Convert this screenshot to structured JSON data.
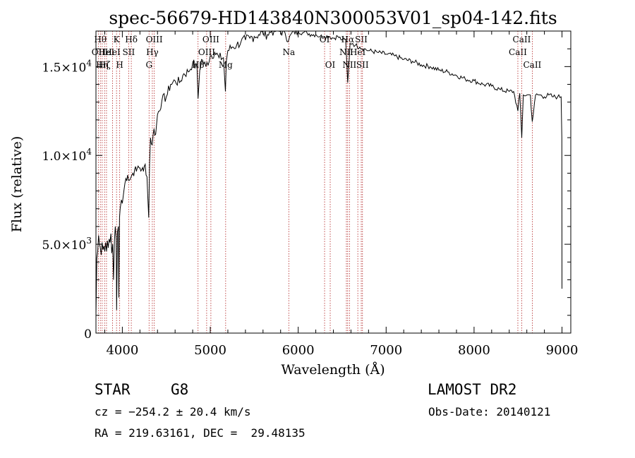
{
  "chart_data": {
    "type": "line",
    "title": "spec-56679-HD143840N300053V01_sp04-142.fits",
    "xlabel": "Wavelength (Å)",
    "ylabel": "Flux (relative)",
    "xlim": [
      3700,
      9100
    ],
    "ylim": [
      0,
      17000
    ],
    "xticks": [
      {
        "value": 4000,
        "label": "4000"
      },
      {
        "value": 5000,
        "label": "5000"
      },
      {
        "value": 6000,
        "label": "6000"
      },
      {
        "value": 7000,
        "label": "7000"
      },
      {
        "value": 8000,
        "label": "8000"
      },
      {
        "value": 9000,
        "label": "9000"
      }
    ],
    "yticks": [
      {
        "value": 0,
        "mant": "0",
        "exp": ""
      },
      {
        "value": 5000,
        "mant": "5.0×10",
        "exp": "3"
      },
      {
        "value": 10000,
        "mant": "1.0×10",
        "exp": "4"
      },
      {
        "value": 15000,
        "mant": "1.5×10",
        "exp": "4"
      }
    ],
    "series": [
      {
        "x": [
          3700,
          3710,
          3720,
          3730,
          3740,
          3750,
          3760,
          3770,
          3780,
          3790,
          3800,
          3810,
          3820,
          3830,
          3840,
          3850,
          3860,
          3870,
          3880,
          3890,
          3900,
          3910,
          3920,
          3930,
          3935,
          3945,
          3955,
          3960,
          3968,
          3975,
          3990,
          4000,
          4020,
          4040,
          4060,
          4080,
          4100,
          4120,
          4140,
          4160,
          4180,
          4200,
          4220,
          4240,
          4260,
          4280,
          4300,
          4310,
          4320,
          4340,
          4360,
          4380,
          4400,
          4450,
          4500,
          4550,
          4600,
          4650,
          4700,
          4750,
          4800,
          4850,
          4861,
          4880,
          4900,
          4950,
          5000,
          5050,
          5100,
          5150,
          5172,
          5183,
          5200,
          5250,
          5300,
          5350,
          5400,
          5450,
          5500,
          5550,
          5600,
          5650,
          5700,
          5750,
          5800,
          5850,
          5893,
          5950,
          6000,
          6050,
          6100,
          6150,
          6200,
          6250,
          6300,
          6350,
          6400,
          6450,
          6500,
          6540,
          6563,
          6590,
          6620,
          6650,
          6700,
          6750,
          6800,
          6900,
          7000,
          7100,
          7200,
          7300,
          7400,
          7500,
          7600,
          7700,
          7800,
          7900,
          8000,
          8100,
          8200,
          8300,
          8400,
          8450,
          8498,
          8520,
          8542,
          8560,
          8600,
          8640,
          8662,
          8700,
          8750,
          8800,
          8850,
          8900,
          8950,
          8990,
          8998,
          9000
        ],
        "y": [
          1000,
          4200,
          4600,
          5500,
          5000,
          4800,
          4400,
          5100,
          4700,
          4900,
          4600,
          5100,
          4600,
          5200,
          4800,
          5300,
          5100,
          5600,
          4500,
          5000,
          3000,
          5200,
          6000,
          5300,
          1300,
          5700,
          6000,
          2000,
          6500,
          7000,
          7500,
          7300,
          8100,
          8700,
          8900,
          8600,
          8800,
          9000,
          9200,
          9100,
          9400,
          9300,
          9200,
          9100,
          9500,
          8800,
          6500,
          9500,
          11000,
          10600,
          11500,
          11200,
          12300,
          13100,
          13300,
          14000,
          14200,
          14100,
          14600,
          14700,
          15200,
          14900,
          13200,
          14800,
          15400,
          15000,
          15600,
          15800,
          15500,
          15500,
          13600,
          15300,
          15900,
          16100,
          16200,
          16400,
          16500,
          16600,
          16700,
          16800,
          16900,
          16800,
          17000,
          17000,
          17000,
          16900,
          16500,
          17000,
          17000,
          16900,
          16900,
          16800,
          16800,
          16700,
          16700,
          16700,
          16600,
          16700,
          16500,
          16500,
          14100,
          16300,
          16300,
          16200,
          16100,
          16000,
          15900,
          15800,
          15700,
          15600,
          15400,
          15300,
          15100,
          15000,
          14800,
          14700,
          14500,
          14300,
          14200,
          14000,
          13900,
          13700,
          13600,
          13600,
          12500,
          13500,
          11000,
          13400,
          13400,
          13400,
          11900,
          13400,
          13400,
          13300,
          13400,
          13300,
          13300,
          13300,
          11000,
          2500
        ]
      }
    ],
    "lines": [
      {
        "x": 3727,
        "label": "OII",
        "row": 1
      },
      {
        "x": 3750,
        "label": "Hθ",
        "row": 0
      },
      {
        "x": 3771,
        "label": "Hη",
        "row": 2
      },
      {
        "x": 3798,
        "label": "Hζ",
        "row": 2
      },
      {
        "x": 3820,
        "label": "HeI",
        "row": 1
      },
      {
        "x": 3889,
        "label": "HeI",
        "row": 1
      },
      {
        "x": 3934,
        "label": "K",
        "row": 0
      },
      {
        "x": 3970,
        "label": "H",
        "row": 2
      },
      {
        "x": 4072,
        "label": "SII",
        "row": 1
      },
      {
        "x": 4102,
        "label": "Hδ",
        "row": 0
      },
      {
        "x": 4304,
        "label": "G",
        "row": 2
      },
      {
        "x": 4341,
        "label": "Hγ",
        "row": 1
      },
      {
        "x": 4363,
        "label": "OIII",
        "row": 0
      },
      {
        "x": 4861,
        "label": "Hβ",
        "row": 2
      },
      {
        "x": 4959,
        "label": "OIII",
        "row": 1
      },
      {
        "x": 5007,
        "label": "OIII",
        "row": 0
      },
      {
        "x": 5175,
        "label": "Mg",
        "row": 2
      },
      {
        "x": 5893,
        "label": "Na",
        "row": 1
      },
      {
        "x": 6300,
        "label": "OI",
        "row": 0
      },
      {
        "x": 6364,
        "label": "OI",
        "row": 2
      },
      {
        "x": 6548,
        "label": "NII",
        "row": 1
      },
      {
        "x": 6563,
        "label": "Hα",
        "row": 0
      },
      {
        "x": 6583,
        "label": "NII",
        "row": 2
      },
      {
        "x": 6678,
        "label": "HeI",
        "row": 1
      },
      {
        "x": 6717,
        "label": "SII",
        "row": 0
      },
      {
        "x": 6731,
        "label": "SII",
        "row": 2
      },
      {
        "x": 8498,
        "label": "CaII",
        "row": 1
      },
      {
        "x": 8542,
        "label": "CaII",
        "row": 0
      },
      {
        "x": 8662,
        "label": "CaII",
        "row": 2
      }
    ]
  },
  "info": {
    "class": "STAR",
    "subclass": "G8",
    "survey": "LAMOST DR2",
    "cz": "cz = −254.2 ± 20.4 km/s",
    "obs_date": "Obs-Date: 20140121",
    "radec": "RA = 219.63161, DEC =  29.48135"
  }
}
